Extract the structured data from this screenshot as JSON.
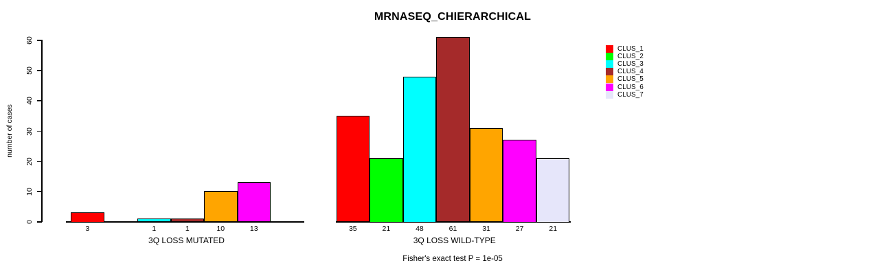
{
  "title": "MRNASEQ_CHIERARCHICAL",
  "footer": "Fisher's exact test P = 1e-05",
  "chart_data": {
    "type": "bar",
    "title": "MRNASEQ_CHIERARCHICAL",
    "ylabel": "number of cases",
    "ylim": [
      0,
      60
    ],
    "yticks": [
      0,
      10,
      20,
      30,
      40,
      50,
      60
    ],
    "grid": false,
    "categories": [
      "CLUS_1",
      "CLUS_2",
      "CLUS_3",
      "CLUS_4",
      "CLUS_5",
      "CLUS_6",
      "CLUS_7"
    ],
    "colors": [
      "#FF0000",
      "#00FF00",
      "#00FFFF",
      "#A52A2A",
      "#FFA500",
      "#FF00FF",
      "#E6E6FA"
    ],
    "groups": [
      {
        "label": "3Q LOSS MUTATED",
        "values": [
          3,
          0,
          1,
          1,
          10,
          13,
          0
        ]
      },
      {
        "label": "3Q LOSS WILD-TYPE",
        "values": [
          35,
          21,
          48,
          61,
          31,
          27,
          21
        ]
      }
    ],
    "legend": {
      "position": "right",
      "entries": [
        {
          "label": "CLUS_1",
          "color": "#FF0000"
        },
        {
          "label": "CLUS_2",
          "color": "#00FF00"
        },
        {
          "label": "CLUS_3",
          "color": "#00FFFF"
        },
        {
          "label": "CLUS_4",
          "color": "#A52A2A"
        },
        {
          "label": "CLUS_5",
          "color": "#FFA500"
        },
        {
          "label": "CLUS_6",
          "color": "#FF00FF"
        },
        {
          "label": "CLUS_7",
          "color": "#E6E6FA"
        }
      ]
    },
    "annotation": "Fisher's exact test P = 1e-05"
  }
}
